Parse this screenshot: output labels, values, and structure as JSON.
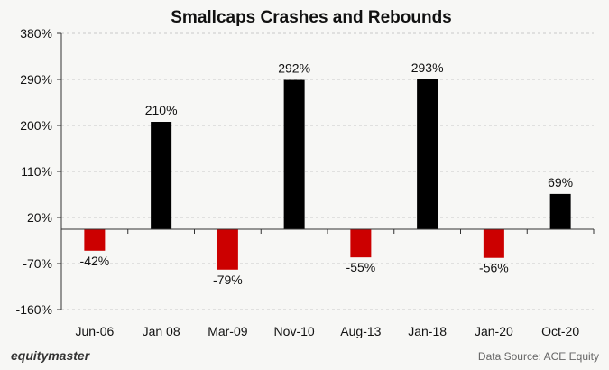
{
  "footer": {
    "brand": "equitymaster",
    "source": "Data Source: ACE Equity"
  },
  "colors": {
    "positive": "#000000",
    "negative": "#cc0000",
    "grid": "#c9c9c9"
  },
  "chart_data": {
    "type": "bar",
    "title": "Smallcaps Crashes and Rebounds",
    "xlabel": "",
    "ylabel": "",
    "categories": [
      "Jun-06",
      "Jan 08",
      "Mar-09",
      "Nov-10",
      "Aug-13",
      "Jan-18",
      "Jan-20",
      "Oct-20"
    ],
    "values": [
      -42,
      210,
      -79,
      292,
      -55,
      293,
      -56,
      69
    ],
    "data_labels": [
      "-42%",
      "210%",
      "-79%",
      "292%",
      "-55%",
      "293%",
      "-56%",
      "69%"
    ],
    "ylim": [
      -160,
      380
    ],
    "yticks": [
      380,
      290,
      200,
      110,
      20,
      -70,
      -160
    ],
    "ytick_labels": [
      "380%",
      "290%",
      "200%",
      "110%",
      "20%",
      "-70%",
      "-160%"
    ],
    "grid": true,
    "legend": "none"
  }
}
